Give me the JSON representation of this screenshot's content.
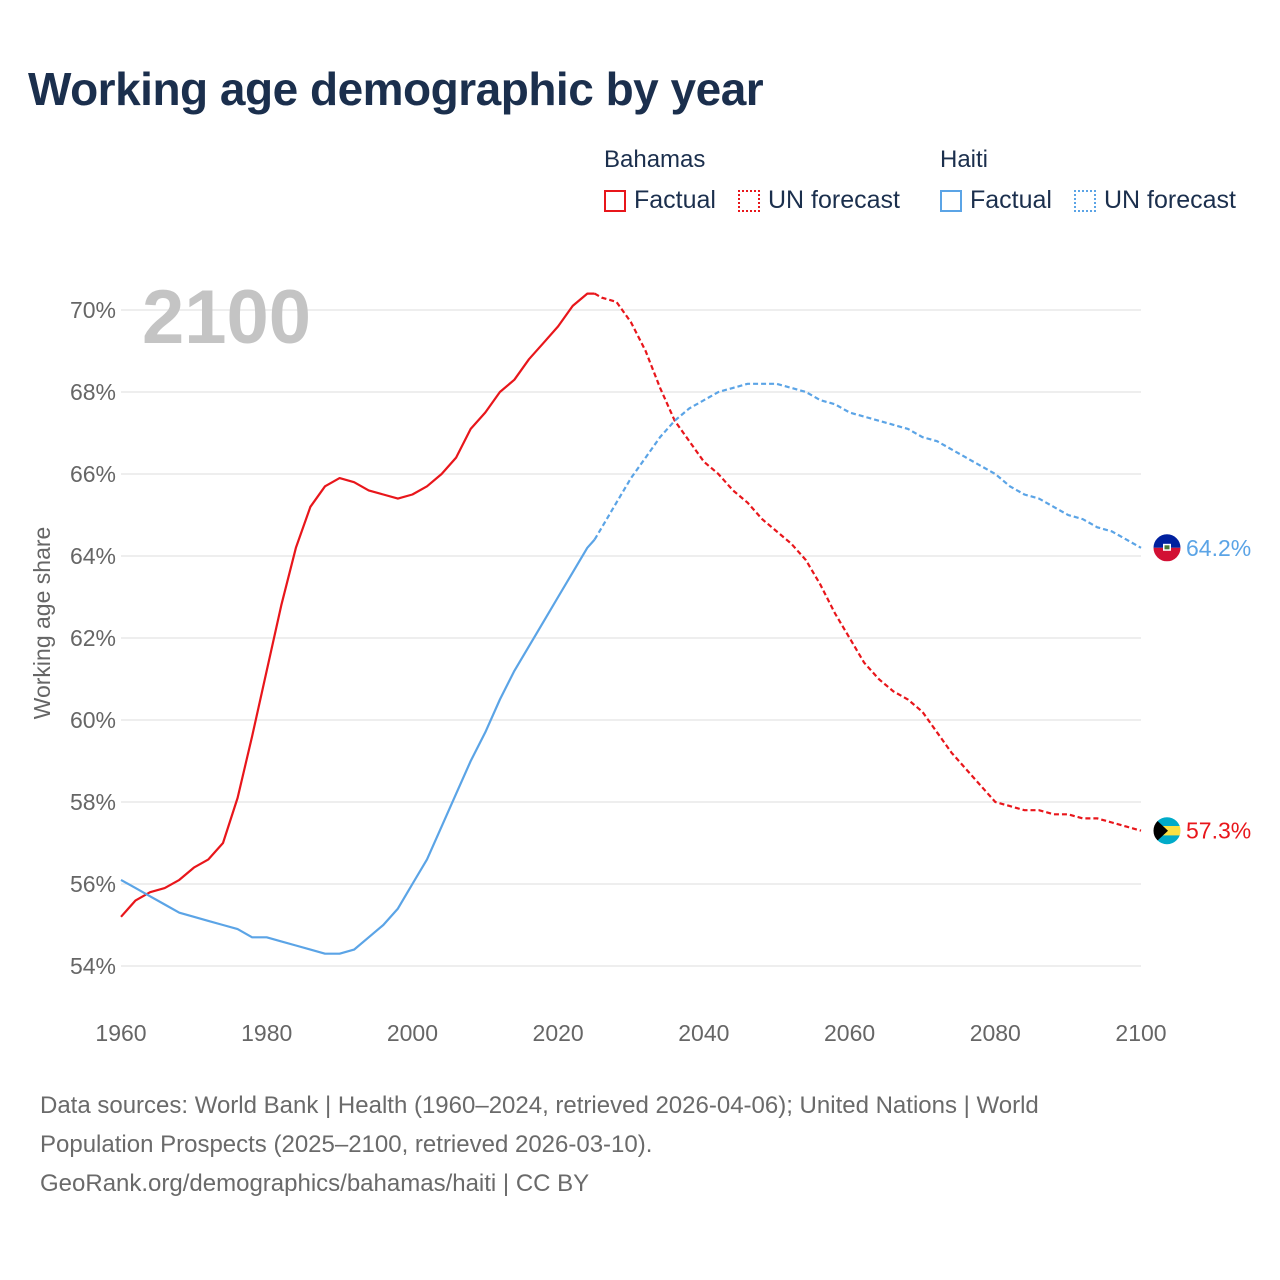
{
  "title": "Working age demographic by year",
  "legend": {
    "groups": [
      {
        "name": "Bahamas",
        "factual": "Factual",
        "forecast": "UN forecast",
        "color": "#e8161b"
      },
      {
        "name": "Haiti",
        "factual": "Factual",
        "forecast": "UN forecast",
        "color": "#5ba4e6"
      }
    ]
  },
  "year_label": "2100",
  "sources": {
    "line1": "Data sources: World Bank | Health (1960–2024, retrieved 2026-04-06); United Nations | World",
    "line2": "Population Prospects (2025–2100, retrieved 2026-03-10).",
    "line3": "GeoRank.org/demographics/bahamas/haiti | CC BY"
  },
  "chart_data": {
    "type": "line",
    "title": "Working age demographic by year",
    "xlabel": "",
    "ylabel": "Working age share",
    "xlim": [
      1960,
      2100
    ],
    "ylim": [
      53.5,
      71
    ],
    "x_ticks": [
      1960,
      1980,
      2000,
      2020,
      2040,
      2060,
      2080,
      2100
    ],
    "x_tick_labels": [
      "1960",
      "1980",
      "2000",
      "2020",
      "2040",
      "2060",
      "2080",
      "2100"
    ],
    "y_ticks": [
      54,
      56,
      58,
      60,
      62,
      64,
      66,
      68,
      70
    ],
    "y_tick_labels": [
      "54%",
      "56%",
      "58%",
      "60%",
      "62%",
      "64%",
      "66%",
      "68%",
      "70%"
    ],
    "grid": true,
    "forecast_start": 2025,
    "series": [
      {
        "name": "Bahamas",
        "color": "#e8161b",
        "end_label": "57.3%",
        "flag": "bahamas-flag",
        "points": [
          [
            1960,
            55.2
          ],
          [
            1962,
            55.6
          ],
          [
            1964,
            55.8
          ],
          [
            1966,
            55.9
          ],
          [
            1968,
            56.1
          ],
          [
            1970,
            56.4
          ],
          [
            1972,
            56.6
          ],
          [
            1974,
            57.0
          ],
          [
            1976,
            58.1
          ],
          [
            1978,
            59.6
          ],
          [
            1980,
            61.2
          ],
          [
            1982,
            62.8
          ],
          [
            1984,
            64.2
          ],
          [
            1986,
            65.2
          ],
          [
            1988,
            65.7
          ],
          [
            1990,
            65.9
          ],
          [
            1992,
            65.8
          ],
          [
            1994,
            65.6
          ],
          [
            1996,
            65.5
          ],
          [
            1998,
            65.4
          ],
          [
            2000,
            65.5
          ],
          [
            2002,
            65.7
          ],
          [
            2004,
            66.0
          ],
          [
            2006,
            66.4
          ],
          [
            2008,
            67.1
          ],
          [
            2010,
            67.5
          ],
          [
            2012,
            68.0
          ],
          [
            2014,
            68.3
          ],
          [
            2016,
            68.8
          ],
          [
            2018,
            69.2
          ],
          [
            2020,
            69.6
          ],
          [
            2022,
            70.1
          ],
          [
            2024,
            70.4
          ],
          [
            2025,
            70.4
          ],
          [
            2026,
            70.3
          ],
          [
            2028,
            70.2
          ],
          [
            2030,
            69.7
          ],
          [
            2032,
            69.0
          ],
          [
            2034,
            68.1
          ],
          [
            2036,
            67.3
          ],
          [
            2038,
            66.8
          ],
          [
            2040,
            66.3
          ],
          [
            2042,
            66.0
          ],
          [
            2044,
            65.6
          ],
          [
            2046,
            65.3
          ],
          [
            2048,
            64.9
          ],
          [
            2050,
            64.6
          ],
          [
            2052,
            64.3
          ],
          [
            2054,
            63.9
          ],
          [
            2056,
            63.3
          ],
          [
            2058,
            62.6
          ],
          [
            2060,
            62.0
          ],
          [
            2062,
            61.4
          ],
          [
            2064,
            61.0
          ],
          [
            2066,
            60.7
          ],
          [
            2068,
            60.5
          ],
          [
            2070,
            60.2
          ],
          [
            2072,
            59.7
          ],
          [
            2074,
            59.2
          ],
          [
            2076,
            58.8
          ],
          [
            2078,
            58.4
          ],
          [
            2080,
            58.0
          ],
          [
            2082,
            57.9
          ],
          [
            2084,
            57.8
          ],
          [
            2086,
            57.8
          ],
          [
            2088,
            57.7
          ],
          [
            2090,
            57.7
          ],
          [
            2092,
            57.6
          ],
          [
            2094,
            57.6
          ],
          [
            2096,
            57.5
          ],
          [
            2098,
            57.4
          ],
          [
            2100,
            57.3
          ]
        ]
      },
      {
        "name": "Haiti",
        "color": "#5ba4e6",
        "end_label": "64.2%",
        "flag": "haiti-flag",
        "points": [
          [
            1960,
            56.1
          ],
          [
            1962,
            55.9
          ],
          [
            1964,
            55.7
          ],
          [
            1966,
            55.5
          ],
          [
            1968,
            55.3
          ],
          [
            1970,
            55.2
          ],
          [
            1972,
            55.1
          ],
          [
            1974,
            55.0
          ],
          [
            1976,
            54.9
          ],
          [
            1978,
            54.7
          ],
          [
            1980,
            54.7
          ],
          [
            1982,
            54.6
          ],
          [
            1984,
            54.5
          ],
          [
            1986,
            54.4
          ],
          [
            1988,
            54.3
          ],
          [
            1990,
            54.3
          ],
          [
            1992,
            54.4
          ],
          [
            1994,
            54.7
          ],
          [
            1996,
            55.0
          ],
          [
            1998,
            55.4
          ],
          [
            2000,
            56.0
          ],
          [
            2002,
            56.6
          ],
          [
            2004,
            57.4
          ],
          [
            2006,
            58.2
          ],
          [
            2008,
            59.0
          ],
          [
            2010,
            59.7
          ],
          [
            2012,
            60.5
          ],
          [
            2014,
            61.2
          ],
          [
            2016,
            61.8
          ],
          [
            2018,
            62.4
          ],
          [
            2020,
            63.0
          ],
          [
            2022,
            63.6
          ],
          [
            2024,
            64.2
          ],
          [
            2025,
            64.4
          ],
          [
            2026,
            64.7
          ],
          [
            2028,
            65.3
          ],
          [
            2030,
            65.9
          ],
          [
            2032,
            66.4
          ],
          [
            2034,
            66.9
          ],
          [
            2036,
            67.3
          ],
          [
            2038,
            67.6
          ],
          [
            2040,
            67.8
          ],
          [
            2042,
            68.0
          ],
          [
            2044,
            68.1
          ],
          [
            2046,
            68.2
          ],
          [
            2048,
            68.2
          ],
          [
            2050,
            68.2
          ],
          [
            2052,
            68.1
          ],
          [
            2054,
            68.0
          ],
          [
            2056,
            67.8
          ],
          [
            2058,
            67.7
          ],
          [
            2060,
            67.5
          ],
          [
            2062,
            67.4
          ],
          [
            2064,
            67.3
          ],
          [
            2066,
            67.2
          ],
          [
            2068,
            67.1
          ],
          [
            2070,
            66.9
          ],
          [
            2072,
            66.8
          ],
          [
            2074,
            66.6
          ],
          [
            2076,
            66.4
          ],
          [
            2078,
            66.2
          ],
          [
            2080,
            66.0
          ],
          [
            2082,
            65.7
          ],
          [
            2084,
            65.5
          ],
          [
            2086,
            65.4
          ],
          [
            2088,
            65.2
          ],
          [
            2090,
            65.0
          ],
          [
            2092,
            64.9
          ],
          [
            2094,
            64.7
          ],
          [
            2096,
            64.6
          ],
          [
            2098,
            64.4
          ],
          [
            2100,
            64.2
          ]
        ]
      }
    ]
  }
}
